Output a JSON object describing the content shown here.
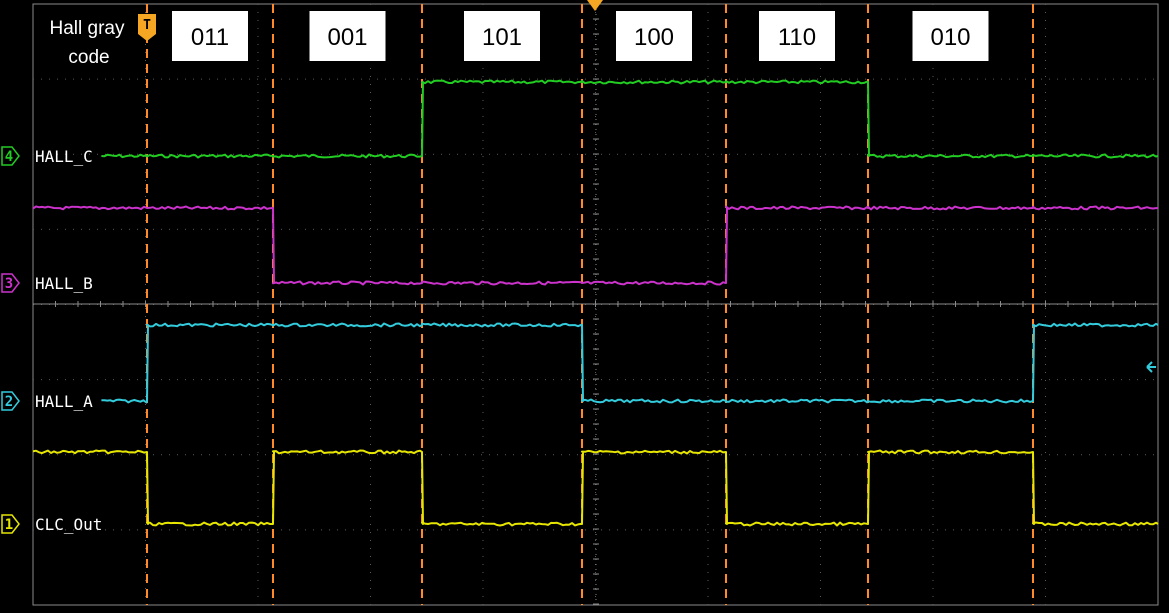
{
  "header": {
    "line1": "Hall gray",
    "line2": "code",
    "trigger_marker_label": "T"
  },
  "colors": {
    "background": "#000000",
    "grid": "#5a5a5a",
    "border": "#8a8a8a",
    "divider": "#8a8a8a",
    "boundary": "#ff8a2a",
    "trigger_marker": "#f5a623",
    "ch1": "#e6e600",
    "ch2": "#33ccdd",
    "ch3": "#cc33cc",
    "ch4": "#22cc22",
    "code_box_bg": "#ffffff",
    "code_box_text": "#000000"
  },
  "chart_data": {
    "type": "line",
    "title": "",
    "xlabel": "",
    "ylabel": "",
    "grid": true,
    "segment_boundaries": [
      1,
      2,
      3,
      4,
      5,
      6,
      7
    ],
    "x_range": [
      0,
      8
    ],
    "codes": [
      {
        "label": "011",
        "segment": 1
      },
      {
        "label": "001",
        "segment": 2
      },
      {
        "label": "101",
        "segment": 3
      },
      {
        "label": "100",
        "segment": 4
      },
      {
        "label": "110",
        "segment": 5
      },
      {
        "label": "010",
        "segment": 6
      }
    ],
    "series": [
      {
        "name": "HALL_C",
        "channel": "4",
        "color_key": "ch4",
        "x": [
          0.6,
          1,
          2,
          3,
          4,
          5,
          6,
          7,
          8
        ],
        "values": [
          0,
          0,
          0,
          1,
          1,
          1,
          0,
          0,
          0
        ]
      },
      {
        "name": "HALL_B",
        "channel": "3",
        "color_key": "ch3",
        "x": [
          0,
          1,
          2,
          3,
          4,
          5,
          6,
          7,
          8
        ],
        "values": [
          1,
          1,
          0,
          0,
          0,
          1,
          1,
          1,
          1
        ]
      },
      {
        "name": "HALL_A",
        "channel": "2",
        "color_key": "ch2",
        "x": [
          0.6,
          1,
          2,
          3,
          4,
          5,
          6,
          7,
          8
        ],
        "values": [
          0,
          1,
          1,
          1,
          0,
          0,
          0,
          1,
          1
        ]
      },
      {
        "name": "CLC_Out",
        "channel": "1",
        "color_key": "ch1",
        "x": [
          0,
          1,
          2,
          3,
          4,
          5,
          6,
          7,
          8
        ],
        "values": [
          1,
          0,
          1,
          0,
          1,
          0,
          1,
          0,
          0
        ]
      }
    ]
  }
}
